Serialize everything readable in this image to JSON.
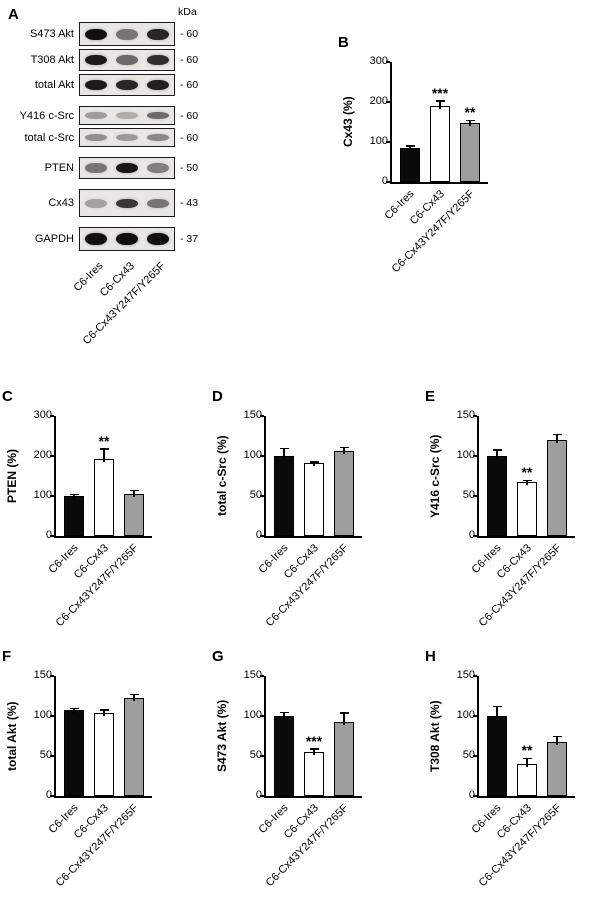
{
  "panel_a": {
    "letter": "A",
    "kda_header": "kDa",
    "rows": [
      {
        "label": "S473 Akt",
        "kda": "60",
        "strip_h": 22,
        "band_h": 11,
        "bands": [
          0.95,
          0.5,
          0.85
        ],
        "gap_after": false
      },
      {
        "label": "T308 Akt",
        "kda": "60",
        "strip_h": 20,
        "band_h": 10,
        "bands": [
          0.9,
          0.55,
          0.82
        ],
        "gap_after": false
      },
      {
        "label": "total Akt",
        "kda": "60",
        "strip_h": 20,
        "band_h": 10,
        "bands": [
          0.9,
          0.85,
          0.88
        ],
        "gap_after": true
      },
      {
        "label": "Y416 c-Src",
        "kda": "60",
        "strip_h": 17,
        "band_h": 7,
        "bands": [
          0.32,
          0.25,
          0.55
        ],
        "gap_after": false
      },
      {
        "label": "total c-Src",
        "kda": "60",
        "strip_h": 17,
        "band_h": 7,
        "bands": [
          0.38,
          0.33,
          0.42
        ],
        "gap_after": true
      },
      {
        "label": "PTEN",
        "kda": "50",
        "strip_h": 20,
        "band_h": 10,
        "bands": [
          0.5,
          0.92,
          0.45
        ],
        "gap_after": true
      },
      {
        "label": "Cx43",
        "kda": "43",
        "strip_h": 26,
        "band_h": 9,
        "bands": [
          0.3,
          0.78,
          0.5
        ],
        "gap_after": true
      },
      {
        "label": "GAPDH",
        "kda": "37",
        "strip_h": 22,
        "band_h": 12,
        "bands": [
          0.95,
          0.95,
          0.95
        ],
        "gap_after": false
      }
    ],
    "lane_labels": [
      "C6-Ires",
      "C6-Cx43",
      "C6-Cx43Y247F/Y265F"
    ]
  },
  "chart_data": [
    {
      "type": "bar",
      "letter": "B",
      "ylabel": "Cx43 (%)",
      "ymax": 300,
      "yticks": [
        0,
        100,
        200,
        300
      ],
      "categories": [
        "C6-Ires",
        "C6-Cx43",
        "C6-Cx43Y247F/Y265F"
      ],
      "values": [
        85,
        190,
        148
      ],
      "errors": [
        6,
        13,
        7
      ],
      "sig": [
        "",
        "***",
        "**"
      ]
    },
    {
      "type": "bar",
      "letter": "C",
      "ylabel": "PTEN (%)",
      "ymax": 300,
      "yticks": [
        0,
        100,
        200,
        300
      ],
      "categories": [
        "C6-Ires",
        "C6-Cx43",
        "C6-Cx43Y247F/Y265F"
      ],
      "values": [
        100,
        193,
        106
      ],
      "errors": [
        5,
        25,
        8
      ],
      "sig": [
        "",
        "**",
        ""
      ]
    },
    {
      "type": "bar",
      "letter": "D",
      "ylabel": "total c-Src (%)",
      "ymax": 150,
      "yticks": [
        0,
        50,
        100,
        150
      ],
      "categories": [
        "C6-Ires",
        "C6-Cx43",
        "C6-Cx43Y247F/Y265F"
      ],
      "values": [
        100,
        91,
        106
      ],
      "errors": [
        10,
        2,
        5
      ],
      "sig": [
        "",
        "",
        ""
      ]
    },
    {
      "type": "bar",
      "letter": "E",
      "ylabel": "Y416 c-Src (%)",
      "ymax": 150,
      "yticks": [
        0,
        50,
        100,
        150
      ],
      "categories": [
        "C6-Ires",
        "C6-Cx43",
        "C6-Cx43Y247F/Y265F"
      ],
      "values": [
        100,
        67,
        120
      ],
      "errors": [
        8,
        3,
        7
      ],
      "sig": [
        "",
        "**",
        ""
      ]
    },
    {
      "type": "bar",
      "letter": "F",
      "ylabel": "total Akt (%)",
      "ymax": 150,
      "yticks": [
        0,
        50,
        100,
        150
      ],
      "categories": [
        "C6-Ires",
        "C6-Cx43",
        "C6-Cx43Y247F/Y265F"
      ],
      "values": [
        107,
        104,
        122
      ],
      "errors": [
        3,
        4,
        5
      ],
      "sig": [
        "",
        "",
        ""
      ]
    },
    {
      "type": "bar",
      "letter": "G",
      "ylabel": "S473 Akt (%)",
      "ymax": 150,
      "yticks": [
        0,
        50,
        100,
        150
      ],
      "categories": [
        "C6-Ires",
        "C6-Cx43",
        "C6-Cx43Y247F/Y265F"
      ],
      "values": [
        100,
        55,
        92
      ],
      "errors": [
        5,
        4,
        12
      ],
      "sig": [
        "",
        "***",
        ""
      ]
    },
    {
      "type": "bar",
      "letter": "H",
      "ylabel": "T308 Akt (%)",
      "ymax": 150,
      "yticks": [
        0,
        50,
        100,
        150
      ],
      "categories": [
        "C6-Ires",
        "C6-Cx43",
        "C6-Cx43Y247F/Y265F"
      ],
      "values": [
        100,
        40,
        67
      ],
      "errors": [
        12,
        7,
        8
      ],
      "sig": [
        "",
        "**",
        ""
      ]
    }
  ],
  "styles": {
    "bar_colors": [
      "#0a0a0a",
      "#ffffff",
      "#9e9e9e"
    ],
    "bar_border": "#000000"
  }
}
